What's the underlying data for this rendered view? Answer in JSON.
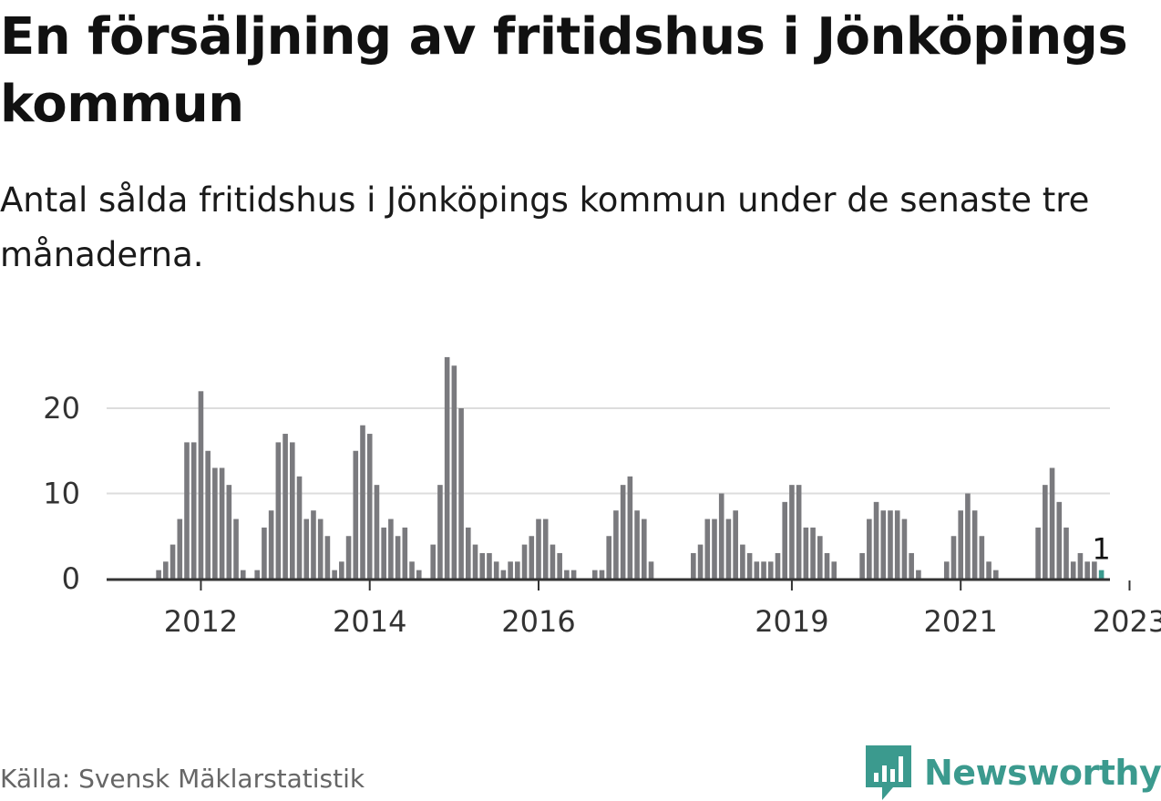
{
  "title": "En försäljning av fritidshus i Jönköpings kommun",
  "subtitle": "Antal sålda fritidshus i Jönköpings kommun under de senaste tre månaderna.",
  "source": "Källa: Svensk Mäklarstatistik",
  "brand": {
    "name": "Newsworthy",
    "color": "#3b9a8e",
    "icon": "bar-chart-speech-bubble-icon"
  },
  "chart_data": {
    "type": "bar",
    "x_ticks": [
      "2012",
      "2014",
      "2016",
      "2019",
      "2021",
      "2023"
    ],
    "y_ticks": [
      0,
      10,
      20
    ],
    "ylim": [
      0,
      27
    ],
    "grid": true,
    "colors": {
      "bar": "#7a7a7e",
      "highlight": "#3b9a8e",
      "axis": "#333333",
      "grid": "#dddddd"
    },
    "highlight_label": "1",
    "series": [
      {
        "values": [
          0,
          0,
          0,
          0,
          0,
          0,
          1,
          2,
          4,
          7,
          16,
          16,
          22,
          15,
          13,
          13,
          11,
          7,
          1,
          0,
          1,
          6,
          8,
          16,
          17,
          16,
          12,
          7,
          8,
          7,
          5,
          1,
          2,
          5,
          15,
          18,
          17,
          11,
          6,
          7,
          5,
          6,
          2,
          1,
          0,
          4,
          11,
          26,
          25,
          20,
          6,
          4,
          3,
          3,
          2,
          1,
          2,
          2,
          4,
          5,
          7,
          7,
          4,
          3,
          1,
          1,
          0,
          0,
          1,
          1,
          5,
          8,
          11,
          12,
          8,
          7,
          2,
          0,
          0,
          0,
          0,
          0,
          3,
          4,
          7,
          7,
          10,
          7,
          8,
          4,
          3,
          2,
          2,
          2,
          3,
          9,
          11,
          11,
          6,
          6,
          5,
          3,
          2,
          0,
          0,
          0,
          3,
          7,
          9,
          8,
          8,
          8,
          7,
          3,
          1,
          0,
          0,
          0,
          2,
          5,
          8,
          10,
          8,
          5,
          2,
          1,
          0,
          0,
          0,
          0,
          0,
          6,
          11,
          13,
          9,
          6,
          2,
          3,
          2,
          2,
          1
        ]
      }
    ]
  }
}
